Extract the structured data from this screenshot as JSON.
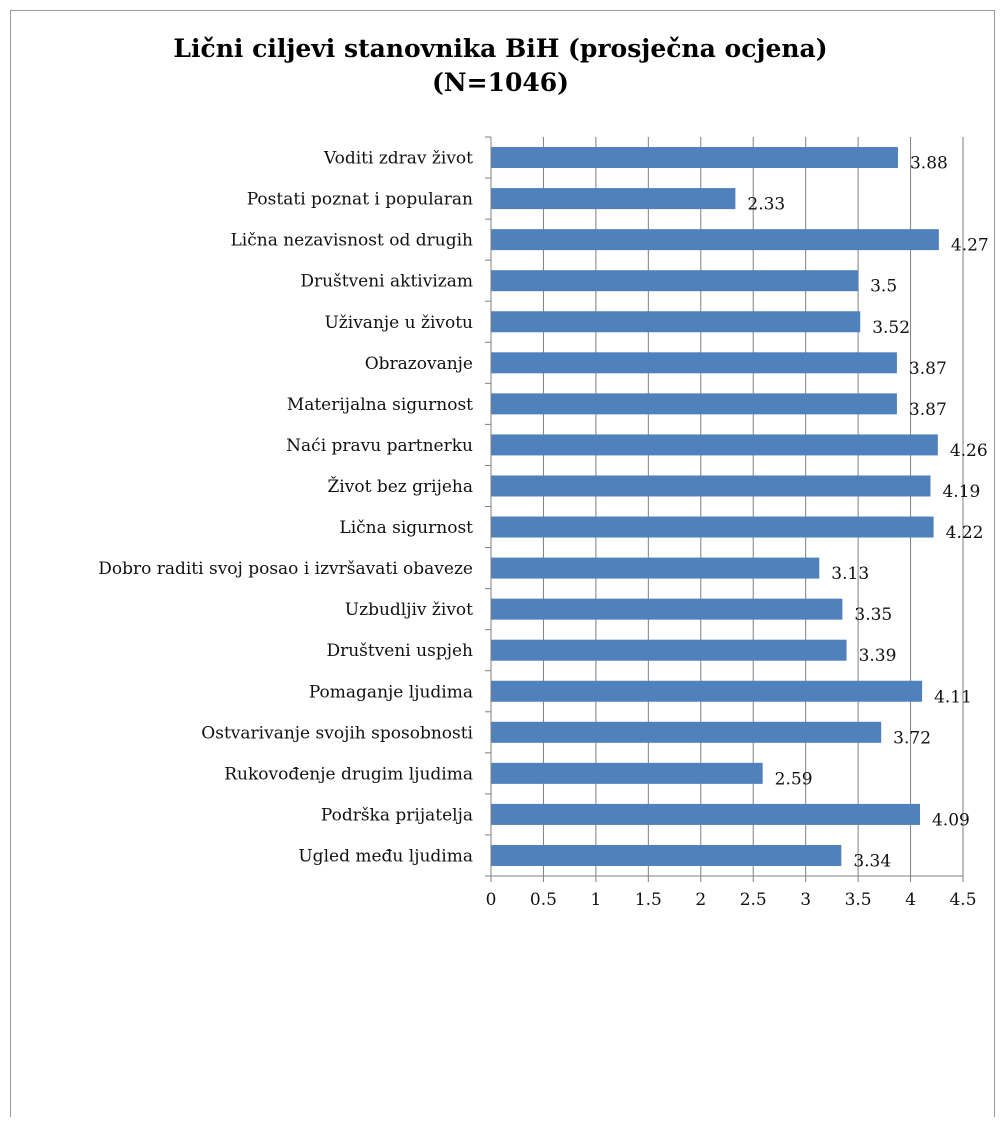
{
  "chart_data": {
    "type": "bar",
    "orientation": "horizontal",
    "title_line1": "Lični ciljevi stanovnika BiH  (prosječna ocjena)",
    "title_line2": "(N=1046)",
    "categories": [
      "Voditi zdrav život",
      "Postati poznat i popularan",
      "Lična nezavisnost od drugih",
      "Društveni aktivizam",
      "Uživanje u životu",
      "Obrazovanje",
      "Materijalna sigurnost",
      "Naći pravu partnerku",
      "Život bez grijeha",
      "Lična sigurnost",
      "Dobro raditi svoj posao i izvršavati obaveze",
      "Uzbudljiv život",
      "Društveni uspjeh",
      "Pomaganje ljudima",
      "Ostvarivanje svojih sposobnosti",
      "Rukovođenje drugim ljudima",
      "Podrška prijatelja",
      "Ugled među ljudima"
    ],
    "values": [
      3.88,
      2.33,
      4.27,
      3.5,
      3.52,
      3.87,
      3.87,
      4.26,
      4.19,
      4.22,
      3.13,
      3.35,
      3.39,
      4.11,
      3.72,
      2.59,
      4.09,
      3.34
    ],
    "value_labels": [
      "3.88",
      "2.33",
      "4.27",
      "3.5",
      "3.52",
      "3.87",
      "3.87",
      "4.26",
      "4.19",
      "4.22",
      "3.13",
      "3.35",
      "3.39",
      "4.11",
      "3.72",
      "2.59",
      "4.09",
      "3.34"
    ],
    "xlim": [
      0,
      4.5
    ],
    "xticks": [
      0,
      0.5,
      1,
      1.5,
      2,
      2.5,
      3,
      3.5,
      4,
      4.5
    ],
    "xtick_labels": [
      "0",
      "0.5",
      "1",
      "1.5",
      "2",
      "2.5",
      "3",
      "3.5",
      "4",
      "4.5"
    ],
    "grid": "vertical",
    "bar_color": "#4f81bd",
    "grid_color": "#7f7f7f"
  }
}
